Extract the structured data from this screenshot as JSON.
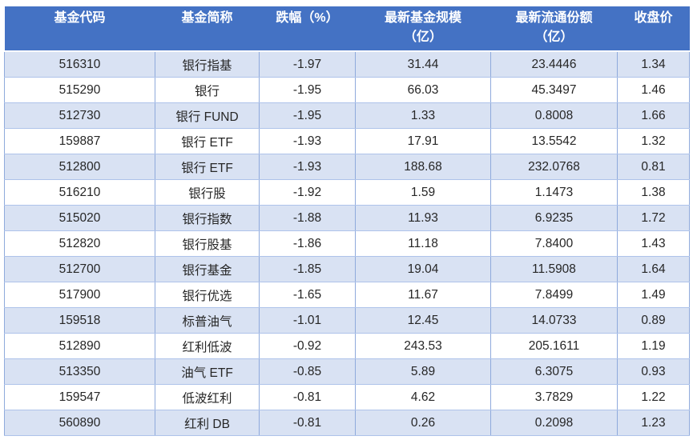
{
  "colors": {
    "header_bg": "#4472C4",
    "header_text": "#FFFFFF",
    "row_alt_bg": "#D9E2F3",
    "row_bg": "#FFFFFF",
    "border_vertical": "#8FAADC",
    "border_horizontal": "#AEC3EA",
    "cell_text": "#262626"
  },
  "chart_data": {
    "type": "table",
    "columns": [
      "基金代码",
      "基金简称",
      "跌幅（%）",
      "最新基金规模（亿）",
      "最新流通份额（亿）",
      "收盘价"
    ],
    "header_lines": [
      [
        "基金代码"
      ],
      [
        "基金简称"
      ],
      [
        "跌幅（%）"
      ],
      [
        "最新基金规模",
        "（亿）"
      ],
      [
        "最新流通份额",
        "（亿）"
      ],
      [
        "收盘价"
      ]
    ],
    "rows": [
      [
        "516310",
        "银行指基",
        "-1.97",
        "31.44",
        "23.4446",
        "1.34"
      ],
      [
        "515290",
        "银行",
        "-1.95",
        "66.03",
        "45.3497",
        "1.46"
      ],
      [
        "512730",
        "银行 FUND",
        "-1.95",
        "1.33",
        "0.8008",
        "1.66"
      ],
      [
        "159887",
        "银行 ETF",
        "-1.93",
        "17.91",
        "13.5542",
        "1.32"
      ],
      [
        "512800",
        "银行 ETF",
        "-1.93",
        "188.68",
        "232.0768",
        "0.81"
      ],
      [
        "516210",
        "银行股",
        "-1.92",
        "1.59",
        "1.1473",
        "1.38"
      ],
      [
        "515020",
        "银行指数",
        "-1.88",
        "11.93",
        "6.9235",
        "1.72"
      ],
      [
        "512820",
        "银行股基",
        "-1.86",
        "11.18",
        "7.8400",
        "1.43"
      ],
      [
        "512700",
        "银行基金",
        "-1.85",
        "19.04",
        "11.5908",
        "1.64"
      ],
      [
        "517900",
        "银行优选",
        "-1.65",
        "11.67",
        "7.8499",
        "1.49"
      ],
      [
        "159518",
        "标普油气",
        "-1.01",
        "12.45",
        "14.0733",
        "0.89"
      ],
      [
        "512890",
        "红利低波",
        "-0.92",
        "243.53",
        "205.1611",
        "1.19"
      ],
      [
        "513350",
        "油气 ETF",
        "-0.85",
        "5.89",
        "6.3075",
        "0.93"
      ],
      [
        "159547",
        "低波红利",
        "-0.81",
        "4.62",
        "3.7829",
        "1.22"
      ],
      [
        "560890",
        "红利 DB",
        "-0.81",
        "0.26",
        "0.2098",
        "1.23"
      ]
    ]
  }
}
